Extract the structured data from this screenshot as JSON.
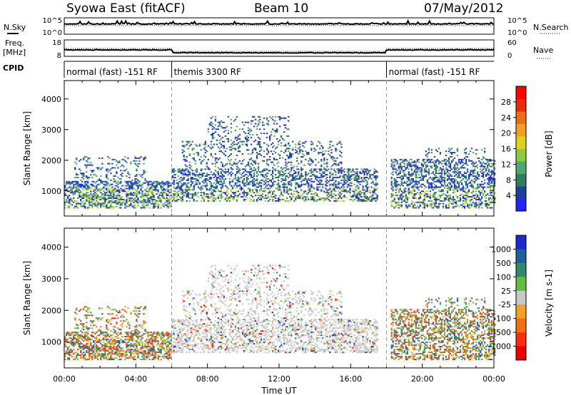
{
  "header": {
    "site": "Syowa East (fitACF)",
    "beam": "Beam 10",
    "date": "07/May/2012"
  },
  "chart_data": [
    {
      "type": "line",
      "panel": "noise",
      "left_label": "N.Sky",
      "right_label": "N.Search",
      "left_ticks": [
        "10^5",
        "10^0"
      ],
      "right_ticks": [
        "10^5",
        "10^0"
      ]
    },
    {
      "type": "scatter",
      "panel": "frequency",
      "left_label_1": "Freq.",
      "left_label_2": "[MHz]",
      "right_label": "Nave",
      "left_ticks": [
        "18",
        "8"
      ],
      "right_ticks": [
        "60",
        "0"
      ]
    },
    {
      "type": "table",
      "panel": "cpid",
      "label": "CPID",
      "segments": [
        {
          "label": "normal (fast) -151 RF",
          "start_hour": 0,
          "end_hour": 6
        },
        {
          "label": "themis 3300 RF",
          "start_hour": 6,
          "end_hour": 18
        },
        {
          "label": "normal (fast) -151 RF",
          "start_hour": 18,
          "end_hour": 24
        }
      ]
    },
    {
      "type": "heatmap",
      "panel": "power",
      "ylabel": "Slant Range [km]",
      "yticks": [
        1000,
        2000,
        3000,
        4000
      ],
      "ylim": [
        180,
        4600
      ],
      "xlim": [
        0,
        24
      ],
      "colorbar": {
        "label": "Power [dB]",
        "ticks": [
          "4",
          "8",
          "12",
          "16",
          "20",
          "24",
          "28"
        ],
        "colors": [
          "#2222ff",
          "#1d3fa0",
          "#2e7d5b",
          "#4fa86b",
          "#8ccc3a",
          "#d9d420",
          "#f3a020",
          "#ee6f12",
          "#e62a0a",
          "#ff0000"
        ]
      }
    },
    {
      "type": "heatmap",
      "panel": "velocity",
      "ylabel": "Slant Range [km]",
      "yticks": [
        1000,
        2000,
        3000,
        4000
      ],
      "ylim": [
        180,
        4600
      ],
      "xlim": [
        0,
        24
      ],
      "xlabel": "Time UT",
      "xticks": [
        "00:00",
        "04:00",
        "08:00",
        "12:00",
        "16:00",
        "20:00",
        "00:00"
      ],
      "colorbar": {
        "label": "Velocity [m s-1]",
        "ticks": [
          "1000",
          "500",
          "100",
          "25",
          "-25",
          "-100",
          "-500",
          "-1000"
        ],
        "colors": [
          "#1a2ad0",
          "#1f5f9a",
          "#2f8a6b",
          "#5fbf3a",
          "#c8c8c8",
          "#f4a020",
          "#f07010",
          "#ff2a10",
          "#ee0000"
        ]
      }
    }
  ]
}
